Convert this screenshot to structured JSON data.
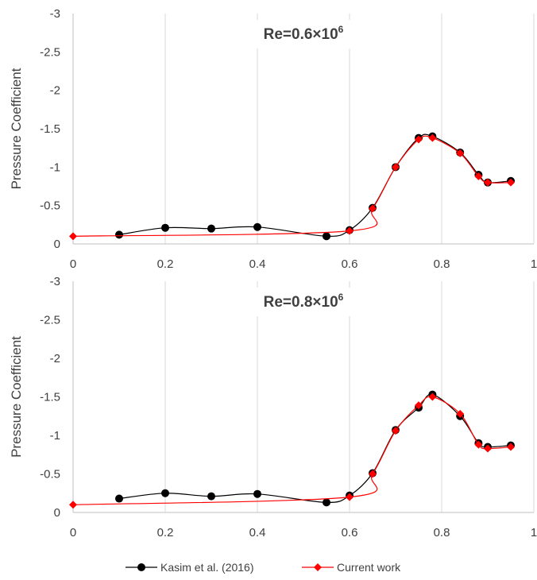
{
  "legend": {
    "items": [
      {
        "label": "Kasim et al. (2016)",
        "color": "#000000",
        "marker": "circle"
      },
      {
        "label": "Current work",
        "color": "#ff0000",
        "marker": "diamond"
      }
    ]
  },
  "chart_data": [
    {
      "type": "line",
      "title": "Re=0.6×10",
      "title_sup": "6",
      "ylabel": "Pressure Coefficient",
      "xlabel": "",
      "xlim": [
        0,
        1
      ],
      "ylim": [
        0,
        -3
      ],
      "y_inverted": true,
      "grid": "vertical",
      "xticks": [
        "0",
        "0.2",
        "0.4",
        "0.6",
        "0.8",
        "1"
      ],
      "yticks": [
        "0",
        "-0.5",
        "-1",
        "-1.5",
        "-2",
        "-2.5",
        "-3"
      ],
      "series": [
        {
          "name": "Kasim et al. (2016)",
          "color": "#000000",
          "marker": "circle",
          "x": [
            0.1,
            0.2,
            0.3,
            0.4,
            0.55,
            0.6,
            0.65,
            0.7,
            0.75,
            0.78,
            0.84,
            0.88,
            0.9,
            0.95
          ],
          "y": [
            -0.12,
            -0.21,
            -0.2,
            -0.22,
            -0.1,
            -0.18,
            -0.47,
            -1.0,
            -1.38,
            -1.4,
            -1.19,
            -0.9,
            -0.8,
            -0.82
          ]
        },
        {
          "name": "Current work",
          "color": "#ff0000",
          "marker": "diamond",
          "x": [
            0.0,
            0.6,
            0.65,
            0.7,
            0.75,
            0.78,
            0.84,
            0.88,
            0.9,
            0.95
          ],
          "y": [
            -0.1,
            -0.17,
            -0.46,
            -1.0,
            -1.36,
            -1.38,
            -1.18,
            -0.88,
            -0.8,
            -0.8
          ]
        }
      ]
    },
    {
      "type": "line",
      "title": "Re=0.8×10",
      "title_sup": "6",
      "ylabel": "Pressure Coefficient",
      "xlabel": "",
      "xlim": [
        0,
        1
      ],
      "ylim": [
        0,
        -3
      ],
      "y_inverted": true,
      "grid": "vertical",
      "xticks": [
        "0",
        "0.2",
        "0.4",
        "0.6",
        "0.8",
        "1"
      ],
      "yticks": [
        "0",
        "-0.5",
        "-1",
        "-1.5",
        "-2",
        "-2.5",
        "-3"
      ],
      "series": [
        {
          "name": "Kasim et al. (2016)",
          "color": "#000000",
          "marker": "circle",
          "x": [
            0.1,
            0.2,
            0.3,
            0.4,
            0.55,
            0.6,
            0.65,
            0.7,
            0.75,
            0.78,
            0.84,
            0.88,
            0.9,
            0.95
          ],
          "y": [
            -0.18,
            -0.25,
            -0.21,
            -0.24,
            -0.13,
            -0.22,
            -0.51,
            -1.07,
            -1.36,
            -1.53,
            -1.25,
            -0.9,
            -0.85,
            -0.87
          ]
        },
        {
          "name": "Current work",
          "color": "#ff0000",
          "marker": "diamond",
          "x": [
            0.0,
            0.6,
            0.65,
            0.7,
            0.75,
            0.78,
            0.84,
            0.88,
            0.9,
            0.95
          ],
          "y": [
            -0.1,
            -0.2,
            -0.5,
            -1.06,
            -1.39,
            -1.5,
            -1.28,
            -0.88,
            -0.83,
            -0.85
          ]
        }
      ]
    }
  ]
}
